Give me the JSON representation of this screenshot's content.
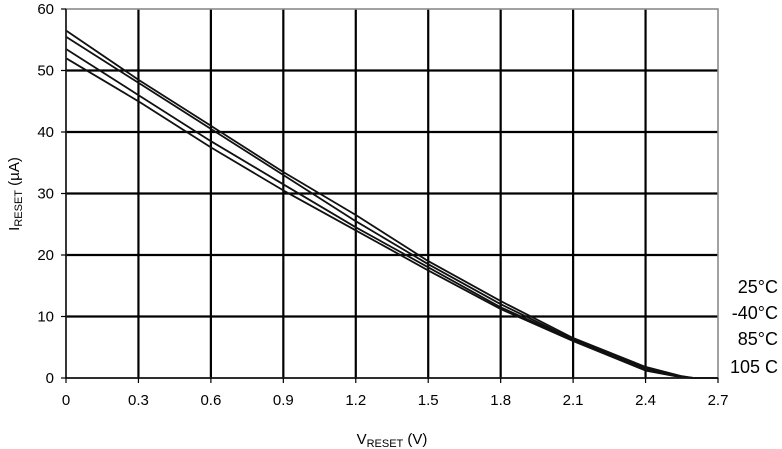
{
  "chart_data": {
    "type": "line",
    "xlabel": {
      "main": "V",
      "sub": "RESET",
      "unit": " (V)"
    },
    "ylabel": {
      "main": "I",
      "sub": "RESET",
      "unit": " (µA)"
    },
    "xlim": [
      0,
      2.7
    ],
    "ylim": [
      0,
      60
    ],
    "x_ticks": [
      "0",
      "0.3",
      "0.6",
      "0.9",
      "1.2",
      "1.5",
      "1.8",
      "2.1",
      "2.4",
      "2.7"
    ],
    "y_ticks": [
      "0",
      "10",
      "20",
      "30",
      "40",
      "50",
      "60"
    ],
    "grid": true,
    "series": [
      {
        "name": "25°C",
        "x": [
          0,
          0.3,
          0.6,
          0.9,
          1.2,
          1.5,
          1.8,
          2.1,
          2.4,
          2.55,
          2.6,
          2.7
        ],
        "y": [
          56.5,
          48.5,
          41,
          33.5,
          26.5,
          19,
          12.5,
          6.5,
          1.8,
          0.3,
          0,
          0
        ]
      },
      {
        "name": "-40°C",
        "x": [
          0,
          0.3,
          0.6,
          0.9,
          1.2,
          1.5,
          1.8,
          2.1,
          2.4,
          2.55,
          2.6,
          2.7
        ],
        "y": [
          55.5,
          48,
          40.5,
          33,
          25.5,
          18.5,
          12,
          6.3,
          1.6,
          0.2,
          0,
          0
        ]
      },
      {
        "name": "85°C",
        "x": [
          0,
          0.3,
          0.6,
          0.9,
          1.2,
          1.5,
          1.8,
          2.1,
          2.4,
          2.55,
          2.6,
          2.7
        ],
        "y": [
          53.5,
          46,
          38.5,
          31.5,
          24.5,
          18,
          11.5,
          6.2,
          1.4,
          0.1,
          0,
          0
        ]
      },
      {
        "name": "105 C",
        "x": [
          0,
          0.3,
          0.6,
          0.9,
          1.2,
          1.5,
          1.8,
          2.1,
          2.4,
          2.55,
          2.6,
          2.7
        ],
        "y": [
          52,
          45,
          37.5,
          30.5,
          24,
          17.5,
          11.2,
          6,
          1.2,
          0.1,
          0,
          0
        ]
      }
    ],
    "legend_labels": [
      "25°C",
      "-40°C",
      "85°C",
      "105 C"
    ]
  }
}
